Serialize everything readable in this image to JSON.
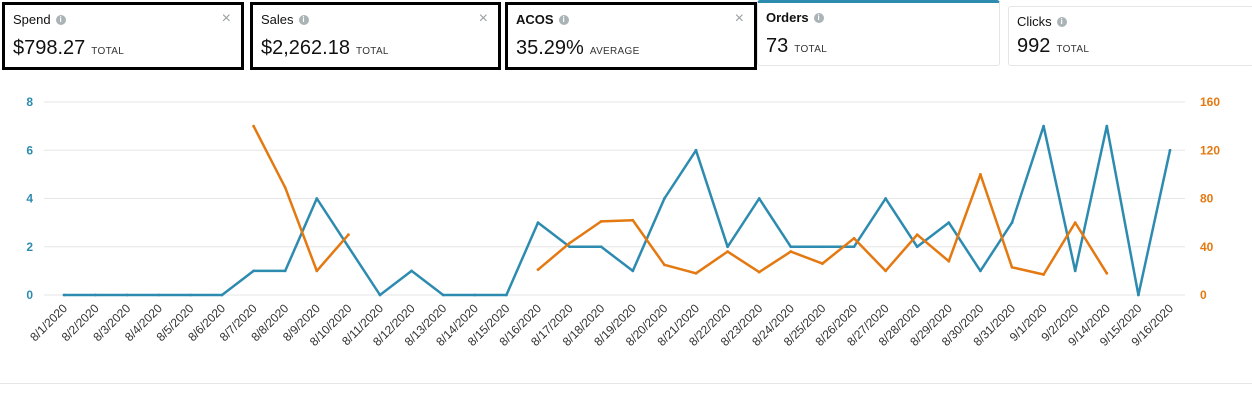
{
  "cards": [
    {
      "label": "Spend",
      "value": "$798.27",
      "agg": "TOTAL",
      "close": "×"
    },
    {
      "label": "Sales",
      "value": "$2,262.18",
      "agg": "TOTAL",
      "close": "×"
    },
    {
      "label": "ACOS",
      "value": "35.29%",
      "agg": "AVERAGE",
      "close": "×"
    },
    {
      "label": "Orders",
      "value": "73",
      "agg": "TOTAL"
    },
    {
      "label": "Clicks",
      "value": "992",
      "agg": "TOTAL"
    }
  ],
  "chart_data": {
    "type": "line",
    "categories": [
      "8/1/2020",
      "8/2/2020",
      "8/3/2020",
      "8/4/2020",
      "8/5/2020",
      "8/6/2020",
      "8/7/2020",
      "8/8/2020",
      "8/9/2020",
      "8/10/2020",
      "8/11/2020",
      "8/12/2020",
      "8/13/2020",
      "8/14/2020",
      "8/15/2020",
      "8/16/2020",
      "8/17/2020",
      "8/18/2020",
      "8/19/2020",
      "8/20/2020",
      "8/21/2020",
      "8/22/2020",
      "8/23/2020",
      "8/24/2020",
      "8/25/2020",
      "8/26/2020",
      "8/27/2020",
      "8/28/2020",
      "8/29/2020",
      "8/30/2020",
      "8/31/2020",
      "9/1/2020",
      "9/2/2020",
      "9/14/2020",
      "9/15/2020",
      "9/16/2020"
    ],
    "series": [
      {
        "axis": "left",
        "color": "#2e8bb0",
        "values": [
          0,
          0,
          0,
          0,
          0,
          0,
          1,
          1,
          4,
          2,
          0,
          1,
          0,
          0,
          0,
          3,
          2,
          2,
          1,
          4,
          6,
          2,
          4,
          2,
          2,
          2,
          4,
          2,
          3,
          1,
          3,
          7,
          1,
          7,
          0,
          6
        ]
      },
      {
        "axis": "right",
        "color": "#e47911",
        "values": [
          null,
          null,
          null,
          null,
          null,
          null,
          140,
          89,
          20,
          50,
          null,
          null,
          null,
          null,
          null,
          21,
          43,
          61,
          62,
          25,
          18,
          36,
          19,
          36,
          26,
          47,
          20,
          50,
          28,
          100,
          23,
          17,
          60,
          18,
          null,
          null
        ]
      }
    ],
    "yleft": {
      "ticks": [
        "0",
        "2",
        "4",
        "6",
        "8"
      ],
      "lim": [
        0,
        8
      ]
    },
    "yright": {
      "ticks": [
        "0",
        "40",
        "80",
        "120",
        "160"
      ],
      "lim": [
        0,
        160
      ]
    },
    "grid": true
  }
}
